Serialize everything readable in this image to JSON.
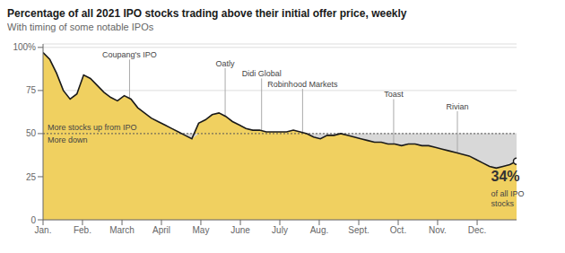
{
  "chart_data": {
    "type": "area",
    "title": "Percentage of all 2021 IPO stocks trading above their initial offer price, weekly",
    "subtitle": "With timing of some notable IPOs",
    "x": [
      0,
      0.7429,
      1.4857,
      2.2286,
      2.9714,
      3.7143,
      4.4571,
      5.2,
      5.9429,
      6.6857,
      7.4286,
      8.1714,
      8.9143,
      9.6571,
      10.4,
      11.1429,
      11.8857,
      12.6286,
      13.3714,
      14.1143,
      14.8571,
      15.6,
      16.3429,
      17.0857,
      17.8286,
      18.5714,
      19.3143,
      20.0571,
      20.8,
      21.5429,
      22.2857,
      23.0286,
      23.7714,
      24.5143,
      25.2571,
      26,
      26.7429,
      27.4857,
      28.2286,
      28.9714,
      29.7143,
      30.4571,
      31.2,
      31.9429,
      32.6857,
      33.4286,
      34.1714,
      34.9143,
      35.6571,
      36.4,
      37.1429,
      37.8857,
      38.6286,
      39.3714,
      40.1143,
      40.8571,
      41.6,
      42.3429,
      43.0857,
      43.8286,
      44.5714,
      45.3143,
      46.0571,
      46.8,
      47.5429,
      48.2857,
      49.0286,
      49.7714,
      50.5143,
      51.2571,
      52
    ],
    "values": [
      97,
      93,
      85,
      75,
      70,
      73,
      84,
      82,
      78,
      74,
      71,
      69,
      72,
      70,
      65,
      62,
      59,
      57,
      55,
      53,
      51,
      49,
      47,
      56,
      58,
      61,
      62,
      60,
      57,
      55,
      53,
      52,
      52,
      51,
      51,
      51,
      51,
      52,
      51,
      50,
      48,
      47,
      49,
      49,
      50,
      49,
      48,
      47,
      46,
      45,
      45,
      44,
      44,
      43,
      44,
      44,
      43,
      43,
      42,
      41,
      40,
      39,
      38,
      37,
      35,
      33,
      31,
      30,
      31,
      32,
      34
    ],
    "color": "#f0d060",
    "xlim": [
      0,
      52
    ],
    "xticks": [
      {
        "value": 0,
        "label": "Jan."
      },
      {
        "value": 4.33,
        "label": "Feb."
      },
      {
        "value": 8.67,
        "label": "March"
      },
      {
        "value": 13.0,
        "label": "April"
      },
      {
        "value": 17.33,
        "label": "May"
      },
      {
        "value": 21.67,
        "label": "June"
      },
      {
        "value": 26.0,
        "label": "July"
      },
      {
        "value": 30.33,
        "label": "Aug."
      },
      {
        "value": 34.67,
        "label": "Sept."
      },
      {
        "value": 39.0,
        "label": "Oct."
      },
      {
        "value": 43.33,
        "label": "Nov."
      },
      {
        "value": 47.67,
        "label": "Dec."
      }
    ],
    "ylim": [
      0,
      102
    ],
    "yticks": [
      0,
      25,
      50,
      75,
      {
        "value": 100,
        "label": "100%"
      }
    ],
    "grid": true,
    "threshold": 50,
    "annotations": [
      {
        "text": "More stocks up from IPO",
        "x": 0.5,
        "y": 52
      },
      {
        "text": "More down",
        "x": 0.5,
        "y": 48
      },
      {
        "text": "Coupang's IPO",
        "x": 9.5,
        "y": 93,
        "line_style": "solid"
      },
      {
        "text": "Oatly",
        "x": 20.0,
        "y": 88,
        "line_style": "solid"
      },
      {
        "text": "Didi Global",
        "x": 24.0,
        "y": 82,
        "line_style": "solid"
      },
      {
        "text": "Robinhood Markets",
        "x": 28.5,
        "y": 76,
        "line_style": "solid"
      },
      {
        "text": "Toast",
        "x": 38.5,
        "y": 70,
        "line_style": "solid"
      },
      {
        "text": "Rivian",
        "x": 45.5,
        "y": 63,
        "line_style": "solid"
      },
      {
        "text": "34%",
        "x": 49.2,
        "y": 28
      },
      {
        "text": "of all IPO",
        "x": 49.2,
        "y": 17
      },
      {
        "text": "stocks",
        "x": 49.2,
        "y": 11
      }
    ]
  }
}
